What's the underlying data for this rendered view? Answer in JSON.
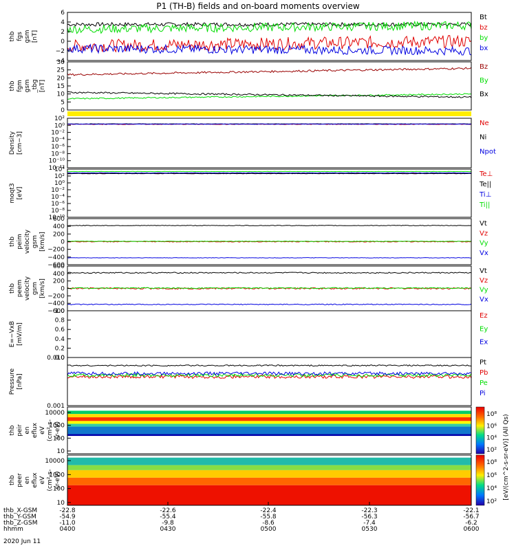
{
  "title": "P1 (TH-B) fields and on-board moments overview",
  "colors": {
    "black": "#000000",
    "red": "#e00000",
    "green": "#00dd00",
    "blue": "#0000e0",
    "maroon": "#990000",
    "yellow": "#ffee00"
  },
  "footer": {
    "rows": [
      {
        "label": "thb_X-GSM",
        "values": [
          "-22.8",
          "-22.6",
          "-22.4",
          "-22.3",
          "-22.1"
        ]
      },
      {
        "label": "thb_Y-GSM",
        "values": [
          "-54.9",
          "-55.4",
          "-55.8",
          "-56.3",
          "-56.7"
        ]
      },
      {
        "label": "thb_Z-GSM",
        "values": [
          "-11.0",
          "-9.8",
          "-8.6",
          "-7.4",
          "-6.2"
        ]
      },
      {
        "label": "hhmm",
        "values": [
          "0400",
          "0430",
          "0500",
          "0530",
          "0600"
        ]
      }
    ],
    "date": "2020 Jun 11"
  },
  "colorbar": {
    "ticks": [
      "10⁸",
      "10⁶",
      "10⁴",
      "10²",
      "10⁸",
      "10⁶",
      "10⁴",
      "10²"
    ],
    "label": "[eV/(cm^2-s-sr-eV)] (All Qs)"
  },
  "chart_data": [
    {
      "id": "fgs",
      "type": "line",
      "ylabel": [
        "thb",
        "fgs",
        "gsm",
        "[nT]"
      ],
      "ylim": [
        -4,
        6
      ],
      "yticks": [
        "6",
        "4",
        "2",
        "0",
        "−2",
        "−4"
      ],
      "series": [
        {
          "name": "Bt",
          "color": "black",
          "base": 3.5,
          "noise": 0.4,
          "trend": 0
        },
        {
          "name": "bz",
          "color": "red",
          "base": -1.0,
          "noise": 1.3,
          "trend": 1.0
        },
        {
          "name": "by",
          "color": "green",
          "base": 2.5,
          "noise": 0.9,
          "trend": 0.8
        },
        {
          "name": "bx",
          "color": "blue",
          "base": -1.5,
          "noise": 0.9,
          "trend": -0.5
        }
      ]
    },
    {
      "id": "fgm",
      "type": "line",
      "ylabel": [
        "thb",
        "fgm",
        "gsm",
        "_tbg",
        "[nT]"
      ],
      "ylim": [
        0,
        30
      ],
      "yticks": [
        "30",
        "25",
        "20",
        "15",
        "10",
        "5",
        "0"
      ],
      "series": [
        {
          "name": "Bz",
          "color": "maroon",
          "base": 22,
          "noise": 0.6,
          "trend": 4
        },
        {
          "name": "By",
          "color": "green",
          "base": 7,
          "noise": 0.4,
          "trend": 3
        },
        {
          "name": "Bx",
          "color": "black",
          "base": 11,
          "noise": 0.5,
          "trend": -3
        }
      ]
    },
    {
      "id": "density",
      "type": "line",
      "ylabel": [
        "Density",
        "[cm−3]"
      ],
      "ylim": [
        -12,
        2
      ],
      "log": true,
      "yticks": [
        "10²",
        "10⁰",
        "10⁻²",
        "10⁻⁴",
        "10⁻⁶",
        "10⁻⁸",
        "10⁻¹⁰",
        "10⁻¹²"
      ],
      "series": [
        {
          "name": "Ne",
          "color": "red",
          "base": 0.3,
          "noise": 0.08,
          "trend": 0
        },
        {
          "name": "Ni",
          "color": "black",
          "base": 0.4,
          "noise": 0.05,
          "trend": 0
        },
        {
          "name": "Npot",
          "color": "blue",
          "base": 0.35,
          "noise": 0.05,
          "trend": 0
        }
      ]
    },
    {
      "id": "temp",
      "type": "line",
      "ylabel": [
        "moqt3",
        "[eV]"
      ],
      "ylim": [
        -10,
        4
      ],
      "log": true,
      "yticks": [
        "10⁴",
        "10²",
        "10⁰",
        "10⁻²",
        "10⁻⁴",
        "10⁻⁶",
        "10⁻⁸",
        "10⁻¹⁰"
      ],
      "series": [
        {
          "name": "Te⊥",
          "color": "red",
          "base": 2.8,
          "noise": 0.05,
          "trend": 0
        },
        {
          "name": "Te||",
          "color": "black",
          "base": 2.7,
          "noise": 0.05,
          "trend": 0
        },
        {
          "name": "Ti⊥",
          "color": "blue",
          "base": 2.9,
          "noise": 0.04,
          "trend": 0
        },
        {
          "name": "Ti||",
          "color": "green",
          "base": 3.3,
          "noise": 0.04,
          "trend": 0
        }
      ]
    },
    {
      "id": "peim",
      "type": "line",
      "ylabel": [
        "thb",
        "peim",
        "velocity",
        "gsm",
        "[km/s]"
      ],
      "ylim": [
        -600,
        600
      ],
      "yticks": [
        "600",
        "400",
        "200",
        "0",
        "−200",
        "−400",
        "−600"
      ],
      "series": [
        {
          "name": "Vt",
          "color": "black",
          "base": 420,
          "noise": 8,
          "trend": 0
        },
        {
          "name": "Vz",
          "color": "red",
          "base": 0,
          "noise": 10,
          "trend": 0
        },
        {
          "name": "Vy",
          "color": "green",
          "base": 10,
          "noise": 6,
          "trend": 0
        },
        {
          "name": "Vx",
          "color": "blue",
          "base": -420,
          "noise": 6,
          "trend": 0
        }
      ]
    },
    {
      "id": "peem",
      "type": "line",
      "ylabel": [
        "thb",
        "peem",
        "velocity",
        "gsm",
        "[km/s]"
      ],
      "ylim": [
        -600,
        600
      ],
      "yticks": [
        "600",
        "400",
        "200",
        "0",
        "−200",
        "−400",
        "−600"
      ],
      "series": [
        {
          "name": "Vt",
          "color": "black",
          "base": 420,
          "noise": 15,
          "trend": 0
        },
        {
          "name": "Vz",
          "color": "red",
          "base": 0,
          "noise": 20,
          "trend": 0
        },
        {
          "name": "Vy",
          "color": "green",
          "base": 10,
          "noise": 15,
          "trend": 0
        },
        {
          "name": "Vx",
          "color": "blue",
          "base": -430,
          "noise": 12,
          "trend": 0
        }
      ]
    },
    {
      "id": "efield",
      "type": "line",
      "ylabel": [
        "E=−VxB",
        "[mV/m]"
      ],
      "ylim": [
        0,
        1
      ],
      "yticks": [
        "1.0",
        "0.8",
        "0.6",
        "0.4",
        "0.2",
        "0.0"
      ],
      "series": [
        {
          "name": "Ez",
          "color": "red",
          "empty": true
        },
        {
          "name": "Ey",
          "color": "green",
          "empty": true
        },
        {
          "name": "Ex",
          "color": "blue",
          "empty": true
        }
      ]
    },
    {
      "id": "pressure",
      "type": "line",
      "ylabel": [
        "Pressure",
        "[nPa]"
      ],
      "ylim": [
        -3,
        -1.5
      ],
      "log": true,
      "yticks": [
        "0.010",
        "0.001"
      ],
      "series": [
        {
          "name": "Pt",
          "color": "black",
          "base": -1.75,
          "noise": 0.02,
          "trend": 0
        },
        {
          "name": "Pb",
          "color": "red",
          "base": -2.1,
          "noise": 0.05,
          "trend": 0
        },
        {
          "name": "Pe",
          "color": "green",
          "base": -2.05,
          "noise": 0.05,
          "trend": 0
        },
        {
          "name": "Pi",
          "color": "blue",
          "base": -2.0,
          "noise": 0.05,
          "trend": 0
        }
      ]
    },
    {
      "id": "peir",
      "type": "heatmap",
      "ylabel": [
        "thb",
        "peir",
        "en",
        "eflux",
        "eV",
        "(cm²-s-",
        "sr-eV)"
      ],
      "yticks": [
        "10000",
        "1000",
        "100",
        "10"
      ]
    },
    {
      "id": "peer",
      "type": "heatmap",
      "ylabel": [
        "thb",
        "peer",
        "en",
        "eflux",
        "eV",
        "(cm²-s-",
        "sr-eV)"
      ],
      "yticks": [
        "10000",
        "1000",
        "100",
        "10"
      ]
    }
  ]
}
